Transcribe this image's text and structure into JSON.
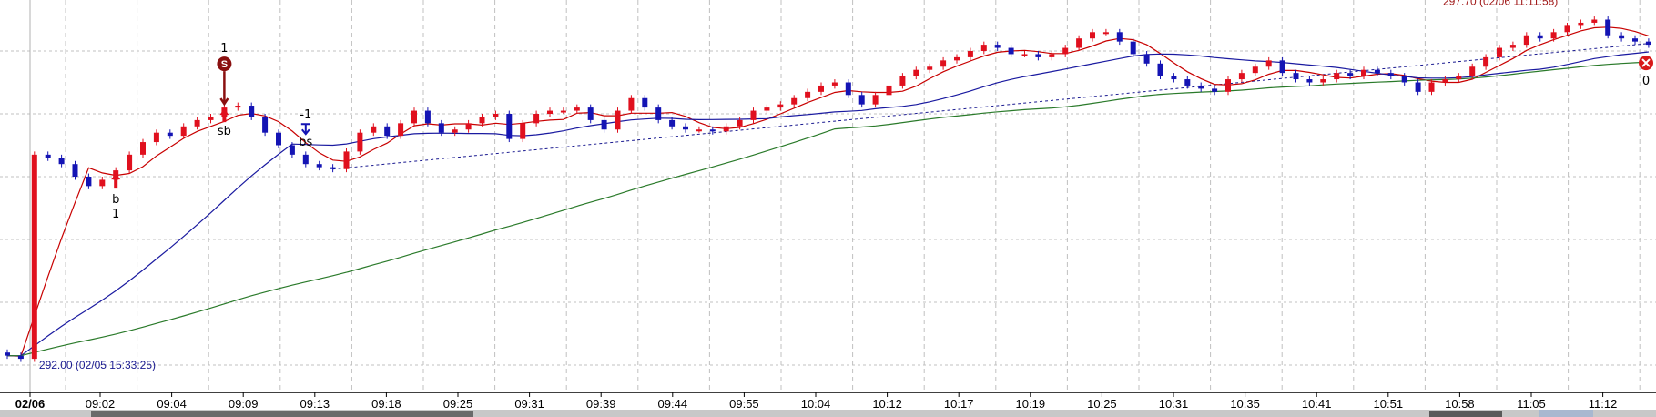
{
  "chart_data": {
    "type": "candlestick",
    "title": "",
    "xlabel": "",
    "ylabel": "",
    "ylim": [
      291.6,
      297.8
    ],
    "grid": true,
    "x_tick_labels": [
      "02/06",
      "09:02",
      "09:04",
      "09:09",
      "09:13",
      "09:18",
      "09:25",
      "09:31",
      "09:39",
      "09:44",
      "09:55",
      "10:04",
      "10:12",
      "10:17",
      "10:19",
      "10:25",
      "10:31",
      "10:35",
      "10:41",
      "10:51",
      "10:58",
      "11:05",
      "11:12"
    ],
    "closes": [
      292.15,
      292.1,
      295.35,
      295.3,
      295.2,
      295.0,
      294.85,
      294.95,
      295.1,
      295.35,
      295.55,
      295.7,
      295.65,
      295.8,
      295.9,
      295.95,
      296.1,
      296.13,
      295.95,
      295.7,
      295.5,
      295.35,
      295.2,
      295.15,
      295.12,
      295.4,
      295.7,
      295.8,
      295.65,
      295.85,
      296.05,
      295.85,
      295.7,
      295.75,
      295.85,
      295.95,
      296.0,
      295.6,
      295.85,
      296.0,
      296.05,
      296.05,
      296.1,
      295.9,
      295.75,
      296.05,
      296.25,
      296.1,
      295.9,
      295.8,
      295.75,
      295.75,
      295.72,
      295.8,
      295.9,
      296.05,
      296.1,
      296.15,
      296.25,
      296.35,
      296.45,
      296.5,
      296.3,
      296.15,
      296.3,
      296.45,
      296.6,
      296.7,
      296.75,
      296.85,
      296.9,
      297.0,
      297.1,
      297.05,
      296.95,
      296.95,
      296.9,
      296.95,
      297.05,
      297.2,
      297.3,
      297.3,
      297.15,
      296.95,
      296.8,
      296.6,
      296.55,
      296.45,
      296.4,
      296.35,
      296.55,
      296.65,
      296.75,
      296.85,
      296.65,
      296.55,
      296.5,
      296.55,
      296.65,
      296.6,
      296.7,
      296.65,
      296.6,
      296.5,
      296.35,
      296.5,
      296.55,
      296.6,
      296.75,
      296.9,
      297.05,
      297.1,
      297.25,
      297.2,
      297.3,
      297.4,
      297.45,
      297.5,
      297.25,
      297.2,
      297.15,
      297.1
    ],
    "colors": {
      "up": "#e0101e",
      "down": "#1414b4",
      "ma_short": "#c80000",
      "ma_mid": "#1a1aa0",
      "ma_long": "#2a7a2a",
      "trend": "#1a1a90",
      "grid": "#c0c0c0"
    },
    "moving_averages": [
      5,
      20,
      60
    ],
    "trendline": {
      "from": {
        "index": 24,
        "price": 295.12
      },
      "to": {
        "index": 121,
        "price": 297.12
      }
    },
    "annotations": {
      "low": {
        "text": "292.00 (02/05 15:33:25)",
        "price": 292.0,
        "index": 1,
        "color": "#1a1a90"
      },
      "high": {
        "text": "297.70 (02/06 11:11:58)",
        "price": 297.7,
        "index": 117,
        "color": "#a01818"
      }
    },
    "signals": [
      {
        "index": 8,
        "type": "buy",
        "label": "b",
        "qty": "1"
      },
      {
        "index": 16,
        "type": "sell",
        "label": "sb",
        "qty": "1",
        "badge": "S"
      },
      {
        "index": 22,
        "type": "sell-down",
        "label": "bs",
        "qty": "-1"
      },
      {
        "index": 121,
        "type": "exit",
        "label": "",
        "qty": "0",
        "badge": "X"
      }
    ]
  }
}
